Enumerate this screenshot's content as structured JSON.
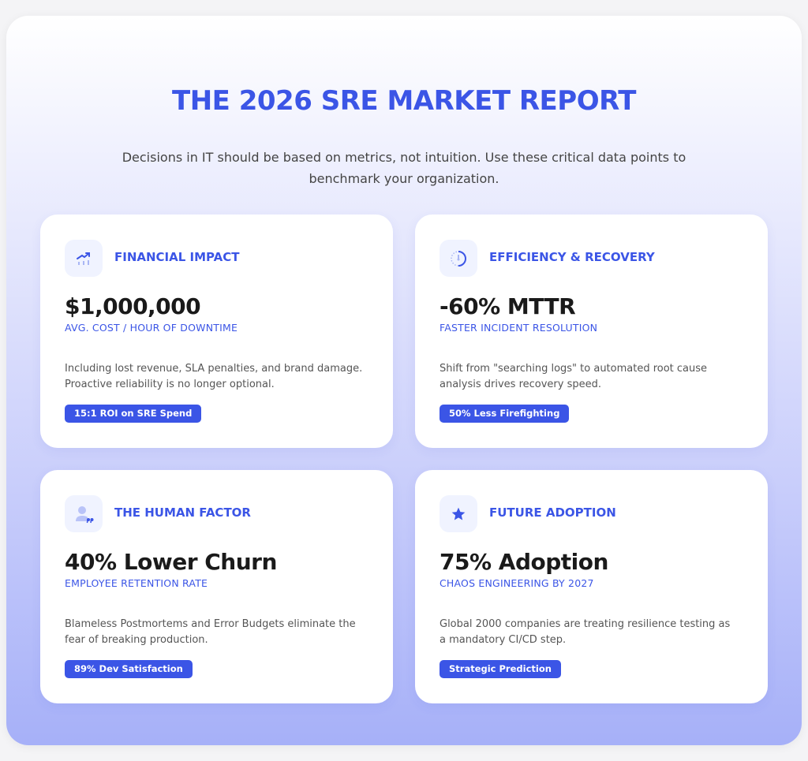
{
  "header": {
    "title": "THE 2026 SRE MARKET REPORT",
    "subtitle": "Decisions in IT should be based on metrics, not intuition. Use these critical data points to benchmark your organization."
  },
  "colors": {
    "accent": "#3b55e6",
    "icon_bg": "#f0f3ff"
  },
  "cards": [
    {
      "icon": "trending-up-chart-icon",
      "heading": "FINANCIAL IMPACT",
      "stat": "$1,000,000",
      "label": "AVG. COST / HOUR OF DOWNTIME",
      "description": "Including lost revenue, SLA penalties, and brand damage. Proactive reliability is no longer optional.",
      "badge": "15:1 ROI on SRE Spend"
    },
    {
      "icon": "stopwatch-icon",
      "heading": "EFFICIENCY & RECOVERY",
      "stat": "-60% MTTR",
      "label": "FASTER INCIDENT RESOLUTION",
      "description": "Shift from \"searching logs\" to automated root cause analysis drives recovery speed.",
      "badge": "50% Less Firefighting"
    },
    {
      "icon": "user-feedback-icon",
      "heading": "THE HUMAN FACTOR",
      "stat": "40% Lower Churn",
      "label": "EMPLOYEE RETENTION RATE",
      "description": "Blameless Postmortems and Error Budgets eliminate the fear of breaking production.",
      "badge": "89% Dev Satisfaction"
    },
    {
      "icon": "star-icon",
      "heading": "FUTURE ADOPTION",
      "stat": "75% Adoption",
      "label": "CHAOS ENGINEERING BY 2027",
      "description": "Global 2000 companies are treating resilience testing as a mandatory CI/CD step.",
      "badge": "Strategic Prediction"
    }
  ]
}
